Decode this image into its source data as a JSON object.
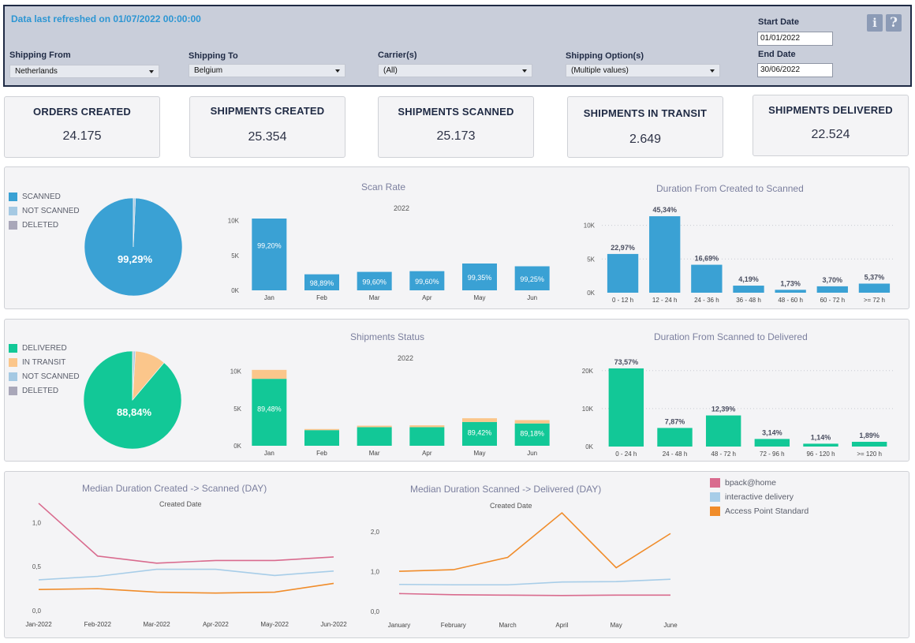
{
  "header": {
    "refresh_text": "Data last refreshed on 01/07/2022 00:00:00",
    "filters": {
      "shipping_from": {
        "label": "Shipping From",
        "value": "Netherlands"
      },
      "shipping_to": {
        "label": "Shipping To",
        "value": "Belgium"
      },
      "carriers": {
        "label": "Carrier(s)",
        "value": "(All)"
      },
      "shipping_options": {
        "label": "Shipping Option(s)",
        "value": "(Multiple values)"
      }
    },
    "start_date": {
      "label": "Start Date",
      "value": "01/01/2022"
    },
    "end_date": {
      "label": "End Date",
      "value": "30/06/2022"
    },
    "info_glyph": "i",
    "help_glyph": "?"
  },
  "kpis": [
    {
      "title": "ORDERS CREATED",
      "value": "24.175"
    },
    {
      "title": "SHIPMENTS CREATED",
      "value": "25.354"
    },
    {
      "title": "SHIPMENTS SCANNED",
      "value": "25.173"
    },
    {
      "title": "SHIPMENTS IN TRANSIT",
      "value": "2.649"
    },
    {
      "title": "SHIPMENTS DELIVERED",
      "value": "22.524"
    }
  ],
  "colors": {
    "scanned": "#3aa1d4",
    "not_scanned": "#a5c9e3",
    "deleted": "#a9a7b9",
    "delivered": "#12c897",
    "in_transit": "#fbc68b",
    "bpack": "#d96b8e",
    "interactive": "#a7cde8",
    "access_point": "#f08c2a"
  },
  "scan_legend": [
    {
      "label": "SCANNED",
      "color": "#3aa1d4"
    },
    {
      "label": "NOT SCANNED",
      "color": "#a5c9e3"
    },
    {
      "label": "DELETED",
      "color": "#a9a7b9"
    }
  ],
  "status_legend": [
    {
      "label": "DELIVERED",
      "color": "#12c897"
    },
    {
      "label": "IN TRANSIT",
      "color": "#fbc68b"
    },
    {
      "label": "NOT SCANNED",
      "color": "#a5c9e3"
    },
    {
      "label": "DELETED",
      "color": "#a9a7b9"
    }
  ],
  "carrier_legend": [
    {
      "label": "bpack@home",
      "color": "#d96b8e"
    },
    {
      "label": "interactive delivery",
      "color": "#a7cde8"
    },
    {
      "label": "Access Point Standard",
      "color": "#f08c2a"
    }
  ],
  "chart_data": [
    {
      "id": "scan_pie",
      "type": "pie",
      "labels": [
        "SCANNED",
        "NOT SCANNED",
        "DELETED"
      ],
      "values": [
        99.29,
        0.65,
        0.06
      ],
      "colors": [
        "#3aa1d4",
        "#a5c9e3",
        "#a9a7b9"
      ],
      "center_label": "99,29%"
    },
    {
      "id": "scan_rate",
      "type": "bar",
      "title": "Scan Rate",
      "subtitle": "2022",
      "categories": [
        "Jan",
        "Feb",
        "Mar",
        "Apr",
        "May",
        "Jun"
      ],
      "values": [
        10300,
        2300,
        2650,
        2750,
        3850,
        3450
      ],
      "labels": [
        "99,20%",
        "98,89%",
        "99,60%",
        "99,60%",
        "99,35%",
        "99,25%"
      ],
      "yticks": [
        0,
        5000,
        10000
      ],
      "ytick_labels": [
        "0K",
        "5K",
        "10K"
      ],
      "ylim": [
        0,
        10300
      ],
      "color": "#3aa1d4"
    },
    {
      "id": "created_to_scanned",
      "type": "bar",
      "title": "Duration From Created to Scanned",
      "categories": [
        "0 - 12 h",
        "12 - 24 h",
        "24 - 36 h",
        "36 - 48 h",
        "48 - 60 h",
        "60 - 72 h",
        ">= 72 h"
      ],
      "values": [
        5750,
        11350,
        4150,
        1050,
        430,
        950,
        1350
      ],
      "labels": [
        "22,97%",
        "45,34%",
        "16,69%",
        "4,19%",
        "1,73%",
        "3,70%",
        "5,37%"
      ],
      "yticks": [
        0,
        5000,
        10000
      ],
      "ytick_labels": [
        "0K",
        "5K",
        "10K"
      ],
      "ylim": [
        0,
        13000
      ],
      "grid": true,
      "color": "#3aa1d4"
    },
    {
      "id": "status_pie",
      "type": "pie",
      "labels": [
        "DELIVERED",
        "IN TRANSIT",
        "NOT SCANNED",
        "DELETED"
      ],
      "values": [
        88.84,
        10.2,
        0.7,
        0.26
      ],
      "colors": [
        "#12c897",
        "#fbc68b",
        "#a5c9e3",
        "#a9a7b9"
      ],
      "center_label": "88,84%"
    },
    {
      "id": "shipments_status",
      "type": "bar",
      "title": "Shipments Status",
      "subtitle": "2022",
      "categories": [
        "Jan",
        "Feb",
        "Mar",
        "Apr",
        "May",
        "Jun"
      ],
      "series": [
        {
          "name": "DELIVERED",
          "values": [
            9000,
            2100,
            2500,
            2500,
            3200,
            3000
          ]
        },
        {
          "name": "IN TRANSIT",
          "values": [
            1200,
            150,
            200,
            250,
            500,
            450
          ]
        }
      ],
      "labels": [
        "89,48%",
        "",
        "",
        "",
        "89,42%",
        "89,18%"
      ],
      "yticks": [
        0,
        5000,
        10000
      ],
      "ytick_labels": [
        "0K",
        "5K",
        "10K"
      ],
      "ylim": [
        0,
        10500
      ],
      "colors": [
        "#12c897",
        "#fbc68b"
      ]
    },
    {
      "id": "scanned_to_delivered",
      "type": "bar",
      "title": "Duration From Scanned to Delivered",
      "categories": [
        "0 - 24 h",
        "24 - 48 h",
        "48 - 72 h",
        "72 - 96 h",
        "96 - 120 h",
        ">= 120 h"
      ],
      "values": [
        20600,
        4900,
        8200,
        2000,
        750,
        1250
      ],
      "labels": [
        "73,57%",
        "7,87%",
        "12,39%",
        "3,14%",
        "1,14%",
        "1,89%"
      ],
      "yticks": [
        0,
        10000,
        20000
      ],
      "ytick_labels": [
        "0K",
        "10K",
        "20K"
      ],
      "ylim": [
        0,
        21000
      ],
      "grid": true,
      "color": "#12c897"
    },
    {
      "id": "median_created_scanned",
      "type": "line",
      "title": "Median Duration Created -> Scanned (DAY)",
      "subtitle": "Created Date",
      "categories": [
        "Jan-2022",
        "Feb-2022",
        "Mar-2022",
        "Apr-2022",
        "May-2022",
        "Jun-2022"
      ],
      "series": [
        {
          "name": "bpack@home",
          "values": [
            1.22,
            0.62,
            0.54,
            0.57,
            0.57,
            0.61
          ]
        },
        {
          "name": "interactive delivery",
          "values": [
            0.35,
            0.39,
            0.47,
            0.47,
            0.4,
            0.45
          ]
        },
        {
          "name": "Access Point Standard",
          "values": [
            0.24,
            0.25,
            0.21,
            0.2,
            0.21,
            0.31
          ]
        }
      ],
      "yticks": [
        0,
        0.5,
        1.0
      ],
      "ytick_labels": [
        "0,0",
        "0,5",
        "1,0"
      ],
      "ylim": [
        0,
        1.3
      ]
    },
    {
      "id": "median_scanned_delivered",
      "type": "line",
      "title": "Median Duration Scanned -> Delivered (DAY)",
      "subtitle": "Created Date",
      "categories": [
        "January",
        "February",
        "March",
        "April",
        "May",
        "June"
      ],
      "series": [
        {
          "name": "bpack@home",
          "values": [
            0.45,
            0.42,
            0.41,
            0.4,
            0.41,
            0.41
          ]
        },
        {
          "name": "interactive delivery",
          "values": [
            0.68,
            0.67,
            0.67,
            0.74,
            0.75,
            0.81
          ]
        },
        {
          "name": "Access Point Standard",
          "values": [
            1.01,
            1.05,
            1.36,
            2.48,
            1.1,
            1.96
          ]
        }
      ],
      "yticks": [
        0,
        1.0,
        2.0
      ],
      "ytick_labels": [
        "0,0",
        "1,0",
        "2,0"
      ],
      "ylim": [
        0,
        2.6
      ]
    }
  ]
}
